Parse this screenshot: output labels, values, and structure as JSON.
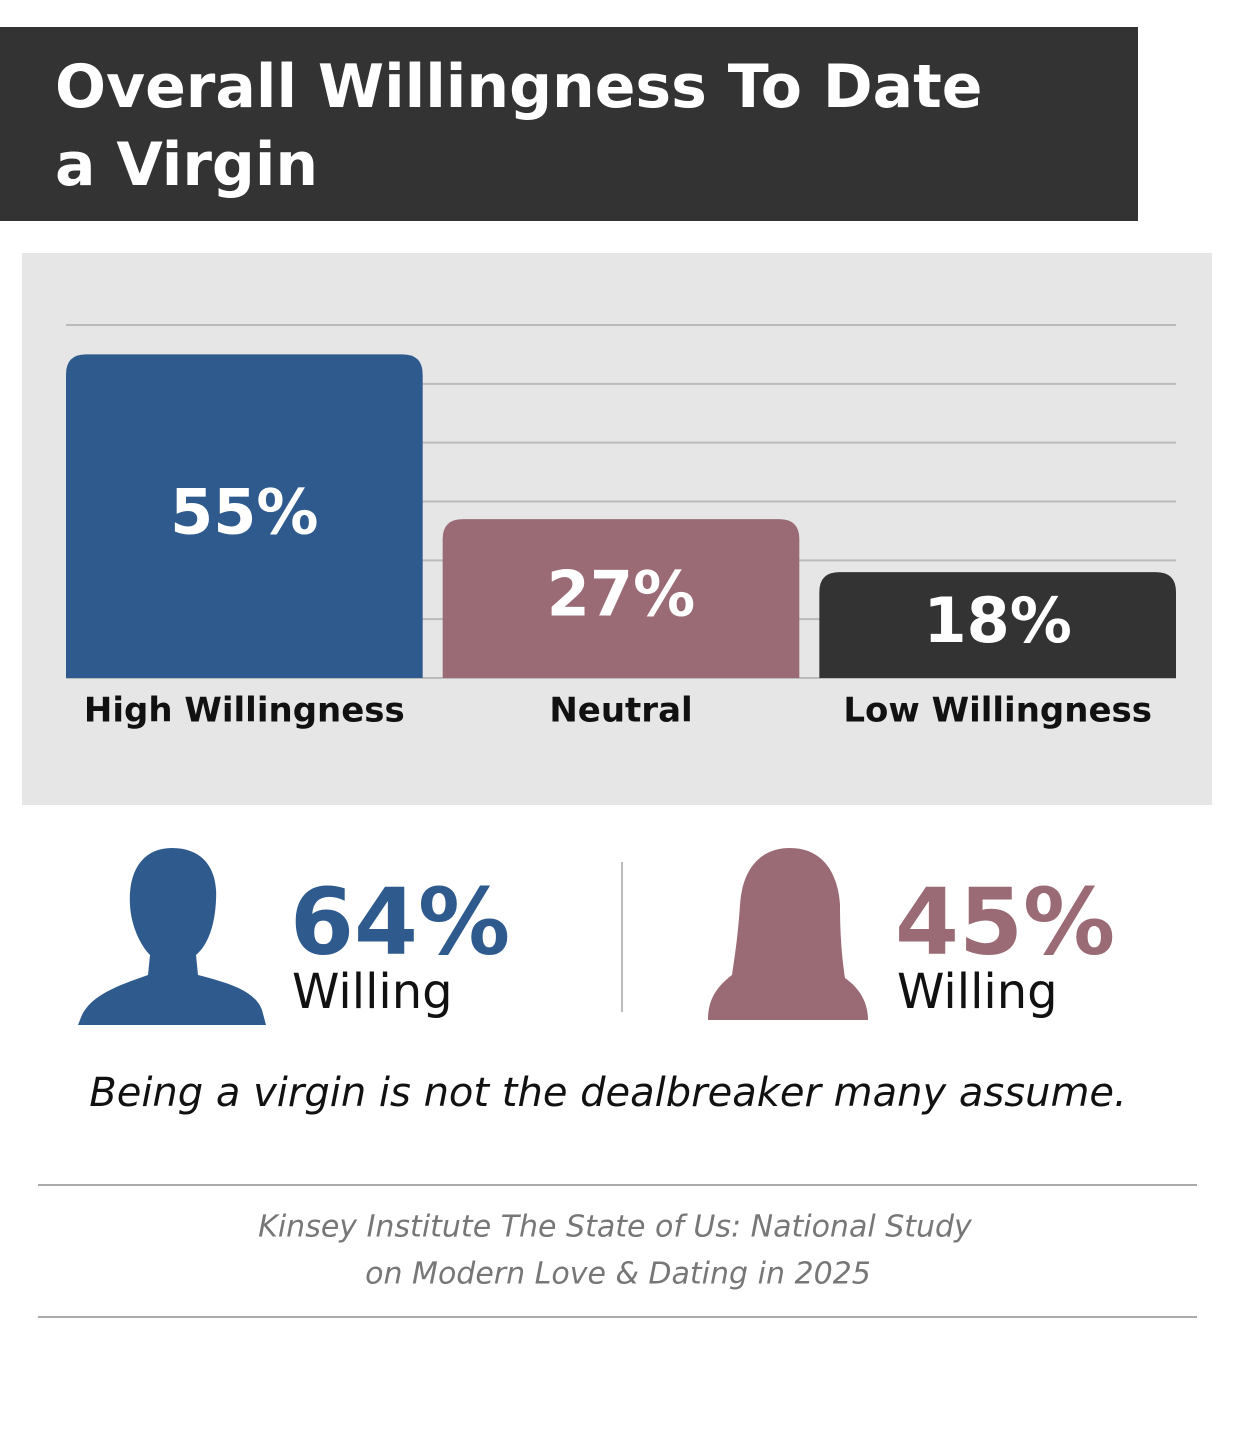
{
  "chart_data": {
    "type": "bar",
    "title": "Overall Willingness To Date a Virgin",
    "categories": [
      "High Willingness",
      "Neutral",
      "Low Willingness"
    ],
    "values": [
      55,
      27,
      18
    ],
    "value_labels": [
      "55%",
      "27%",
      "18%"
    ],
    "colors": [
      "#2e5a8e",
      "#9a6b75",
      "#333333"
    ],
    "ylim": [
      0,
      60
    ],
    "yticks": [
      0,
      10,
      20,
      30,
      40,
      50,
      60
    ],
    "grid": true
  },
  "gender_stats": [
    {
      "value": "64%",
      "label": "Willing",
      "color": "#2e5a8e"
    },
    {
      "value": "45%",
      "label": "Willing",
      "color": "#9a6b75"
    }
  ],
  "caption": "Being a virgin is not the dealbreaker many assume.",
  "source": [
    "Kinsey Institute The State of Us: National Study",
    "on Modern Love & Dating in 2025"
  ]
}
